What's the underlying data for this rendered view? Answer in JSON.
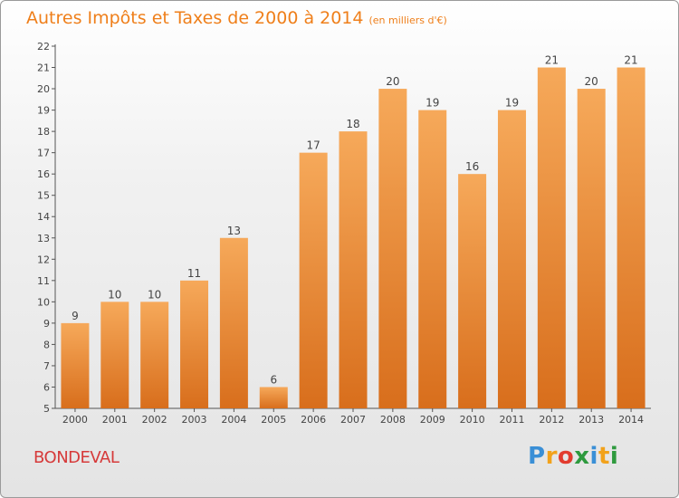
{
  "title": "Autres Impôts et Taxes de 2000 à 2014",
  "unit": "(en milliers d'€)",
  "commune": "BONDEVAL",
  "logo": {
    "letters": [
      "P",
      "r",
      "o",
      "x",
      "i",
      "t",
      "i"
    ],
    "colors": [
      "#3a8fd6",
      "#f2a21b",
      "#e23b2e",
      "#2e9a3e",
      "#3a8fd6",
      "#f2a21b",
      "#2e9a3e"
    ]
  },
  "colors": {
    "bar_top": "#f6a95a",
    "bar_bottom": "#d86e1c",
    "title": "#ef7f1a",
    "commune": "#d63a3a"
  },
  "chart_data": {
    "type": "bar",
    "categories": [
      "2000",
      "2001",
      "2002",
      "2003",
      "2004",
      "2005",
      "2006",
      "2007",
      "2008",
      "2009",
      "2010",
      "2011",
      "2012",
      "2013",
      "2014"
    ],
    "values": [
      9,
      10,
      10,
      11,
      13,
      6,
      17,
      18,
      20,
      19,
      16,
      19,
      21,
      20,
      21
    ],
    "ylim": [
      5,
      22
    ],
    "yticks": [
      5,
      6,
      7,
      8,
      9,
      10,
      11,
      12,
      13,
      14,
      15,
      16,
      17,
      18,
      19,
      20,
      21,
      22
    ],
    "grid": false,
    "legend": "none"
  }
}
